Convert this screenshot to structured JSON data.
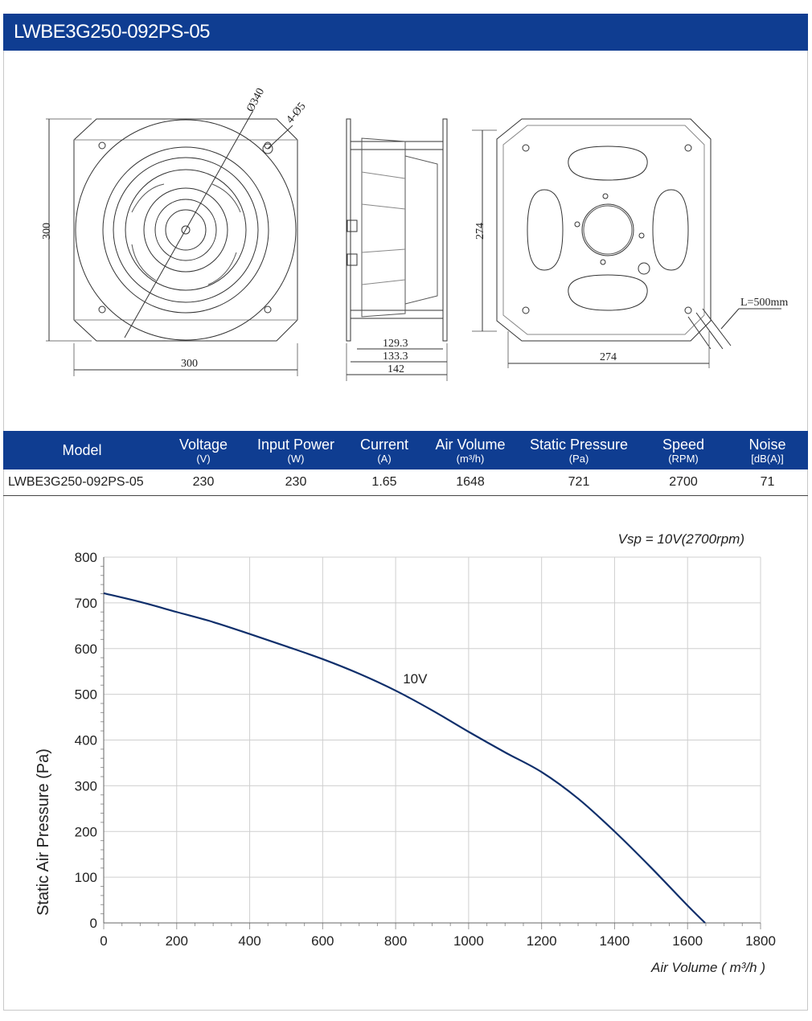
{
  "header": {
    "title": "LWBE3G250-092PS-05"
  },
  "drawing": {
    "front": {
      "dim_diameter": "Ø340",
      "dim_holes": "4-Ø5",
      "dim_height": "300",
      "dim_width": "300"
    },
    "side": {
      "dim_1": "129.3",
      "dim_2": "133.3",
      "dim_3": "142"
    },
    "back": {
      "dim_height": "274",
      "dim_width": "274",
      "dim_cable": "L=500mm"
    }
  },
  "spec_table": {
    "columns": [
      {
        "label": "Model",
        "unit": ""
      },
      {
        "label": "Voltage",
        "unit": "(V)"
      },
      {
        "label": "Input Power",
        "unit": "(W)"
      },
      {
        "label": "Current",
        "unit": "(A)"
      },
      {
        "label": "Air Volume",
        "unit": "(m³/h)"
      },
      {
        "label": "Static Pressure",
        "unit": "(Pa)"
      },
      {
        "label": "Speed",
        "unit": "(RPM)"
      },
      {
        "label": "Noise",
        "unit": "[dB(A)]"
      }
    ],
    "rows": [
      [
        "LWBE3G250-092PS-05",
        "230",
        "230",
        "1.65",
        "1648",
        "721",
        "2700",
        "71"
      ]
    ]
  },
  "chart_data": {
    "type": "line",
    "title": "",
    "annotation": "Vsp = 10V(2700rpm)",
    "xlabel": "Air Volume ( m³/h )",
    "ylabel": "Static Air Pressure  (Pa)",
    "xlim": [
      0,
      1800
    ],
    "ylim": [
      0,
      800
    ],
    "xticks": [
      0,
      200,
      400,
      600,
      800,
      1000,
      1200,
      1400,
      1600,
      1800
    ],
    "yticks": [
      0,
      100,
      200,
      300,
      400,
      500,
      600,
      700,
      800
    ],
    "grid": true,
    "series": [
      {
        "name": "10V",
        "color": "#0f2f6b",
        "x": [
          0,
          100,
          200,
          300,
          400,
          500,
          600,
          700,
          800,
          900,
          1000,
          1100,
          1200,
          1300,
          1400,
          1500,
          1600,
          1648
        ],
        "y": [
          721,
          702,
          680,
          658,
          632,
          605,
          577,
          545,
          508,
          465,
          418,
          373,
          330,
          272,
          200,
          121,
          38,
          0
        ]
      }
    ]
  }
}
